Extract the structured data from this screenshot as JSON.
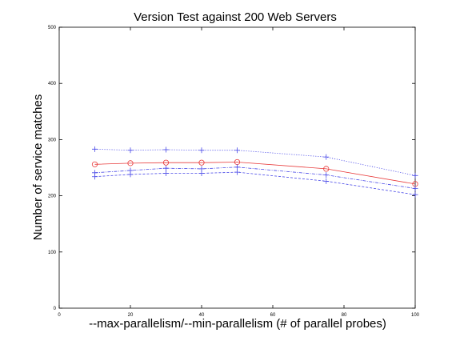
{
  "chart_data": {
    "type": "line",
    "title": "Version Test against 200 Web Servers",
    "xlabel": "--max-parallelism/--min-parallelism (# of parallel probes)",
    "ylabel": "Number of service matches",
    "xlim": [
      0,
      100
    ],
    "ylim": [
      0,
      500
    ],
    "xticks": [
      0,
      20,
      40,
      60,
      80,
      100
    ],
    "yticks": [
      0,
      100,
      200,
      300,
      400,
      500
    ],
    "grid": false,
    "legend": "none",
    "x": [
      10,
      20,
      30,
      40,
      50,
      75,
      100
    ],
    "series": [
      {
        "style": "dotted",
        "marker": "plus",
        "color": "#4a4ae8",
        "values": [
          283,
          281,
          282,
          281,
          281,
          269,
          236
        ]
      },
      {
        "style": "solid",
        "marker": "circle",
        "color": "#e83a3a",
        "values": [
          256,
          258,
          259,
          259,
          260,
          248,
          221
        ]
      },
      {
        "style": "dashdot",
        "marker": "plus",
        "color": "#4a4ae8",
        "values": [
          241,
          245,
          249,
          248,
          251,
          237,
          213
        ]
      },
      {
        "style": "dashed",
        "marker": "plus",
        "color": "#4a4ae8",
        "values": [
          234,
          238,
          240,
          240,
          242,
          226,
          202
        ]
      }
    ]
  }
}
